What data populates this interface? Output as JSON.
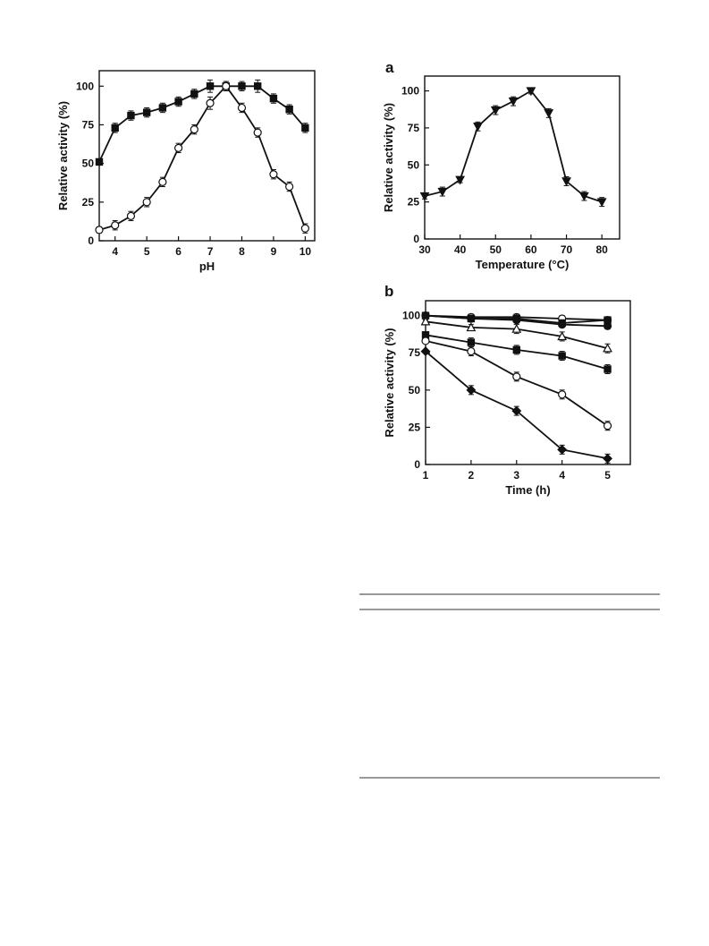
{
  "chart_data": [
    {
      "id": "ph",
      "type": "line",
      "panel_label": "",
      "xlabel": "pH",
      "ylabel": "Relative activity (%)",
      "xlim": [
        3.5,
        10.3
      ],
      "ylim": [
        0,
        110
      ],
      "xticks": [
        4,
        5,
        6,
        7,
        8,
        9,
        10
      ],
      "yticks": [
        0,
        25,
        50,
        75,
        100
      ],
      "grid": false,
      "legend": "none",
      "series": [
        {
          "marker": "square-filled",
          "x": [
            3.5,
            4,
            4.5,
            5,
            5.5,
            6,
            6.5,
            7,
            7.5,
            8,
            8.5,
            9,
            9.5,
            10
          ],
          "y": [
            51,
            73,
            81,
            83,
            86,
            90,
            95,
            100,
            100,
            100,
            100,
            92,
            85,
            73
          ],
          "err": [
            2,
            3,
            3,
            3,
            3,
            3,
            3,
            4,
            3,
            3,
            4,
            3,
            3,
            3
          ]
        },
        {
          "marker": "circle-open",
          "x": [
            3.5,
            4,
            4.5,
            5,
            5.5,
            6,
            6.5,
            7,
            7.5,
            8,
            8.5,
            9,
            9.5,
            10
          ],
          "y": [
            7,
            10,
            16,
            25,
            38,
            60,
            72,
            89,
            100,
            86,
            70,
            43,
            35,
            8
          ],
          "err": [
            2,
            3,
            3,
            3,
            3,
            3,
            3,
            4,
            3,
            3,
            3,
            3,
            3,
            3
          ]
        }
      ]
    },
    {
      "id": "temperature",
      "type": "line",
      "panel_label": "a",
      "xlabel": "Temperature (°C)",
      "ylabel": "Relative activity (%)",
      "xlim": [
        30,
        85
      ],
      "ylim": [
        0,
        110
      ],
      "xticks": [
        30,
        40,
        50,
        60,
        70,
        80
      ],
      "yticks": [
        0,
        25,
        50,
        75,
        100
      ],
      "grid": false,
      "legend": "none",
      "series": [
        {
          "marker": "triangle-down-filled",
          "x": [
            30,
            35,
            40,
            45,
            50,
            55,
            60,
            65,
            70,
            75,
            80
          ],
          "y": [
            29,
            32,
            40,
            76,
            87,
            93,
            100,
            85,
            39,
            29,
            25
          ],
          "err": [
            2,
            3,
            2,
            3,
            3,
            3,
            2,
            3,
            3,
            3,
            3
          ]
        }
      ]
    },
    {
      "id": "stability",
      "type": "line",
      "panel_label": "b",
      "xlabel": "Time (h)",
      "ylabel": "Relative activity (%)",
      "xlim": [
        1,
        5.5
      ],
      "ylim": [
        0,
        110
      ],
      "xticks": [
        1,
        2,
        3,
        4,
        5
      ],
      "yticks": [
        0,
        25,
        50,
        75,
        100
      ],
      "grid": false,
      "legend": "none",
      "series": [
        {
          "marker": "circle-open",
          "x": [
            1,
            2,
            3,
            4,
            5
          ],
          "y": [
            100,
            99,
            99,
            98,
            97
          ],
          "err": [
            1,
            2,
            2,
            2,
            2
          ]
        },
        {
          "marker": "square-filled",
          "x": [
            1,
            2,
            3,
            4,
            5
          ],
          "y": [
            100,
            98,
            98,
            95,
            97
          ],
          "err": [
            1,
            2,
            3,
            2,
            2
          ]
        },
        {
          "marker": "circle-filled",
          "x": [
            1,
            2,
            3,
            4,
            5
          ],
          "y": [
            100,
            98,
            97,
            94,
            93
          ],
          "err": [
            1,
            2,
            2,
            2,
            2
          ]
        },
        {
          "marker": "triangle-open",
          "x": [
            1,
            2,
            3,
            4,
            5
          ],
          "y": [
            96,
            92,
            91,
            86,
            78
          ],
          "err": [
            1,
            2,
            3,
            3,
            3
          ]
        },
        {
          "marker": "square-filled",
          "x": [
            1,
            2,
            3,
            4,
            5
          ],
          "y": [
            87,
            82,
            77,
            73,
            64
          ],
          "err": [
            1,
            3,
            3,
            3,
            3
          ]
        },
        {
          "marker": "circle-open",
          "x": [
            1,
            2,
            3,
            4,
            5
          ],
          "y": [
            83,
            76,
            59,
            47,
            26
          ],
          "err": [
            1,
            3,
            3,
            3,
            3
          ]
        },
        {
          "marker": "diamond-filled",
          "x": [
            1,
            2,
            3,
            4,
            5
          ],
          "y": [
            76,
            50,
            36,
            10,
            4
          ],
          "err": [
            1,
            3,
            3,
            3,
            3
          ]
        }
      ]
    }
  ]
}
